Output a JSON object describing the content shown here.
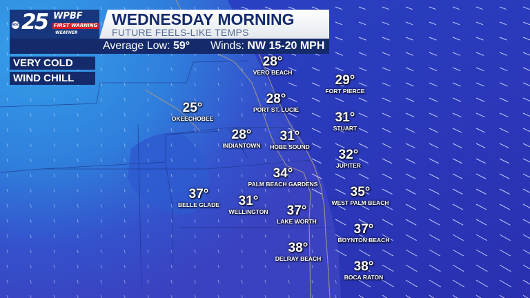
{
  "header": {
    "logo_text": "25 WPBF FIRST WARNING WEATHER abc",
    "logo_number": "25",
    "logo_station": "WPBF",
    "logo_fw": "FIRST WARNING",
    "logo_weather": "WEATHER",
    "logo_network": "abc",
    "title": "WEDNESDAY MORNING",
    "subtitle": "FUTURE FEELS-LIKE TEMPS",
    "average_low_label": "Average Low:",
    "average_low_value": "59°",
    "winds_label": "Winds:",
    "winds_value": "NW 15-20 MPH"
  },
  "tags": [
    "VERY COLD",
    "WIND CHILL"
  ],
  "colors": {
    "ocean": "#2a3cc0",
    "land_cold": "#2f8be0",
    "land_mild": "#3448c8",
    "banner": "#142a6a",
    "accent_red": "#d3202a"
  },
  "wind_direction": "NW",
  "cities": [
    {
      "name": "VERO BEACH",
      "temp": "28°"
    },
    {
      "name": "FORT PIERCE",
      "temp": "29°"
    },
    {
      "name": "PORT ST. LUCIE",
      "temp": "28°"
    },
    {
      "name": "STUART",
      "temp": "31°"
    },
    {
      "name": "HOBE SOUND",
      "temp": "31°"
    },
    {
      "name": "JUPITER",
      "temp": "32°"
    },
    {
      "name": "PALM BEACH GARDENS",
      "temp": "34°"
    },
    {
      "name": "WEST PALM BEACH",
      "temp": "35°"
    },
    {
      "name": "LAKE WORTH",
      "temp": "37°"
    },
    {
      "name": "BOYNTON BEACH",
      "temp": "37°"
    },
    {
      "name": "DELRAY BEACH",
      "temp": "38°"
    },
    {
      "name": "BOCA RATON",
      "temp": "38°"
    },
    {
      "name": "OKEECHOBEE",
      "temp": "25°"
    },
    {
      "name": "INDIANTOWN",
      "temp": "28°"
    },
    {
      "name": "BELLE GLADE",
      "temp": "37°"
    },
    {
      "name": "WELLINGTON",
      "temp": "31°"
    }
  ]
}
